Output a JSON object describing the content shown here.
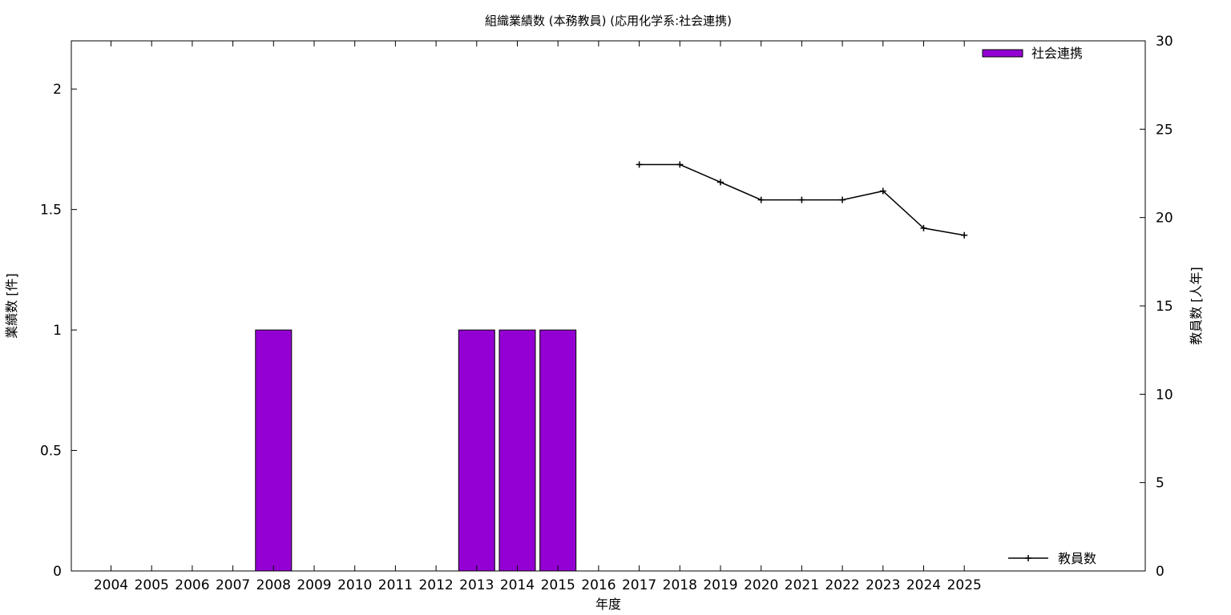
{
  "chart_data": {
    "type": "bar",
    "title": "組織業績数 (本務教員) (応用化学系:社会連携)",
    "xlabel": "年度",
    "ylabel": "業績数 [件]",
    "y2label": "教員数 [人年]",
    "categories": [
      "2004",
      "2005",
      "2006",
      "2007",
      "2008",
      "2009",
      "2010",
      "2011",
      "2012",
      "2013",
      "2014",
      "2015",
      "2016",
      "2017",
      "2018",
      "2019",
      "2020",
      "2021",
      "2022",
      "2023",
      "2024",
      "2025"
    ],
    "ylim": [
      0,
      2.2
    ],
    "y2lim": [
      0,
      30
    ],
    "yticks": [
      0,
      0.5,
      1,
      1.5,
      2
    ],
    "ytick_labels": [
      "0",
      "0.5",
      "1",
      "1.5",
      "2"
    ],
    "y2ticks": [
      0,
      5,
      10,
      15,
      20,
      25,
      30
    ],
    "y2tick_labels": [
      "0",
      "5",
      "10",
      "15",
      "20",
      "25",
      "30"
    ],
    "grid": false,
    "series": [
      {
        "name": "社会連携",
        "kind": "bar",
        "axis": "left",
        "color": "#9400d3",
        "values": [
          0,
          0,
          0,
          0,
          1,
          0,
          0,
          0,
          0,
          1,
          1,
          1,
          0,
          0,
          0,
          0,
          0,
          0,
          0,
          0,
          0,
          0
        ]
      },
      {
        "name": "教員数",
        "kind": "line",
        "axis": "right",
        "color": "#000000",
        "x": [
          "2017",
          "2018",
          "2019",
          "2020",
          "2021",
          "2022",
          "2023",
          "2024",
          "2025"
        ],
        "values": [
          23,
          23,
          22,
          21,
          21,
          21,
          21.5,
          19.4,
          19
        ]
      }
    ],
    "legend": [
      {
        "label": "社会連携",
        "placement": "top-right"
      },
      {
        "label": "教員数",
        "placement": "bottom-right"
      }
    ]
  }
}
